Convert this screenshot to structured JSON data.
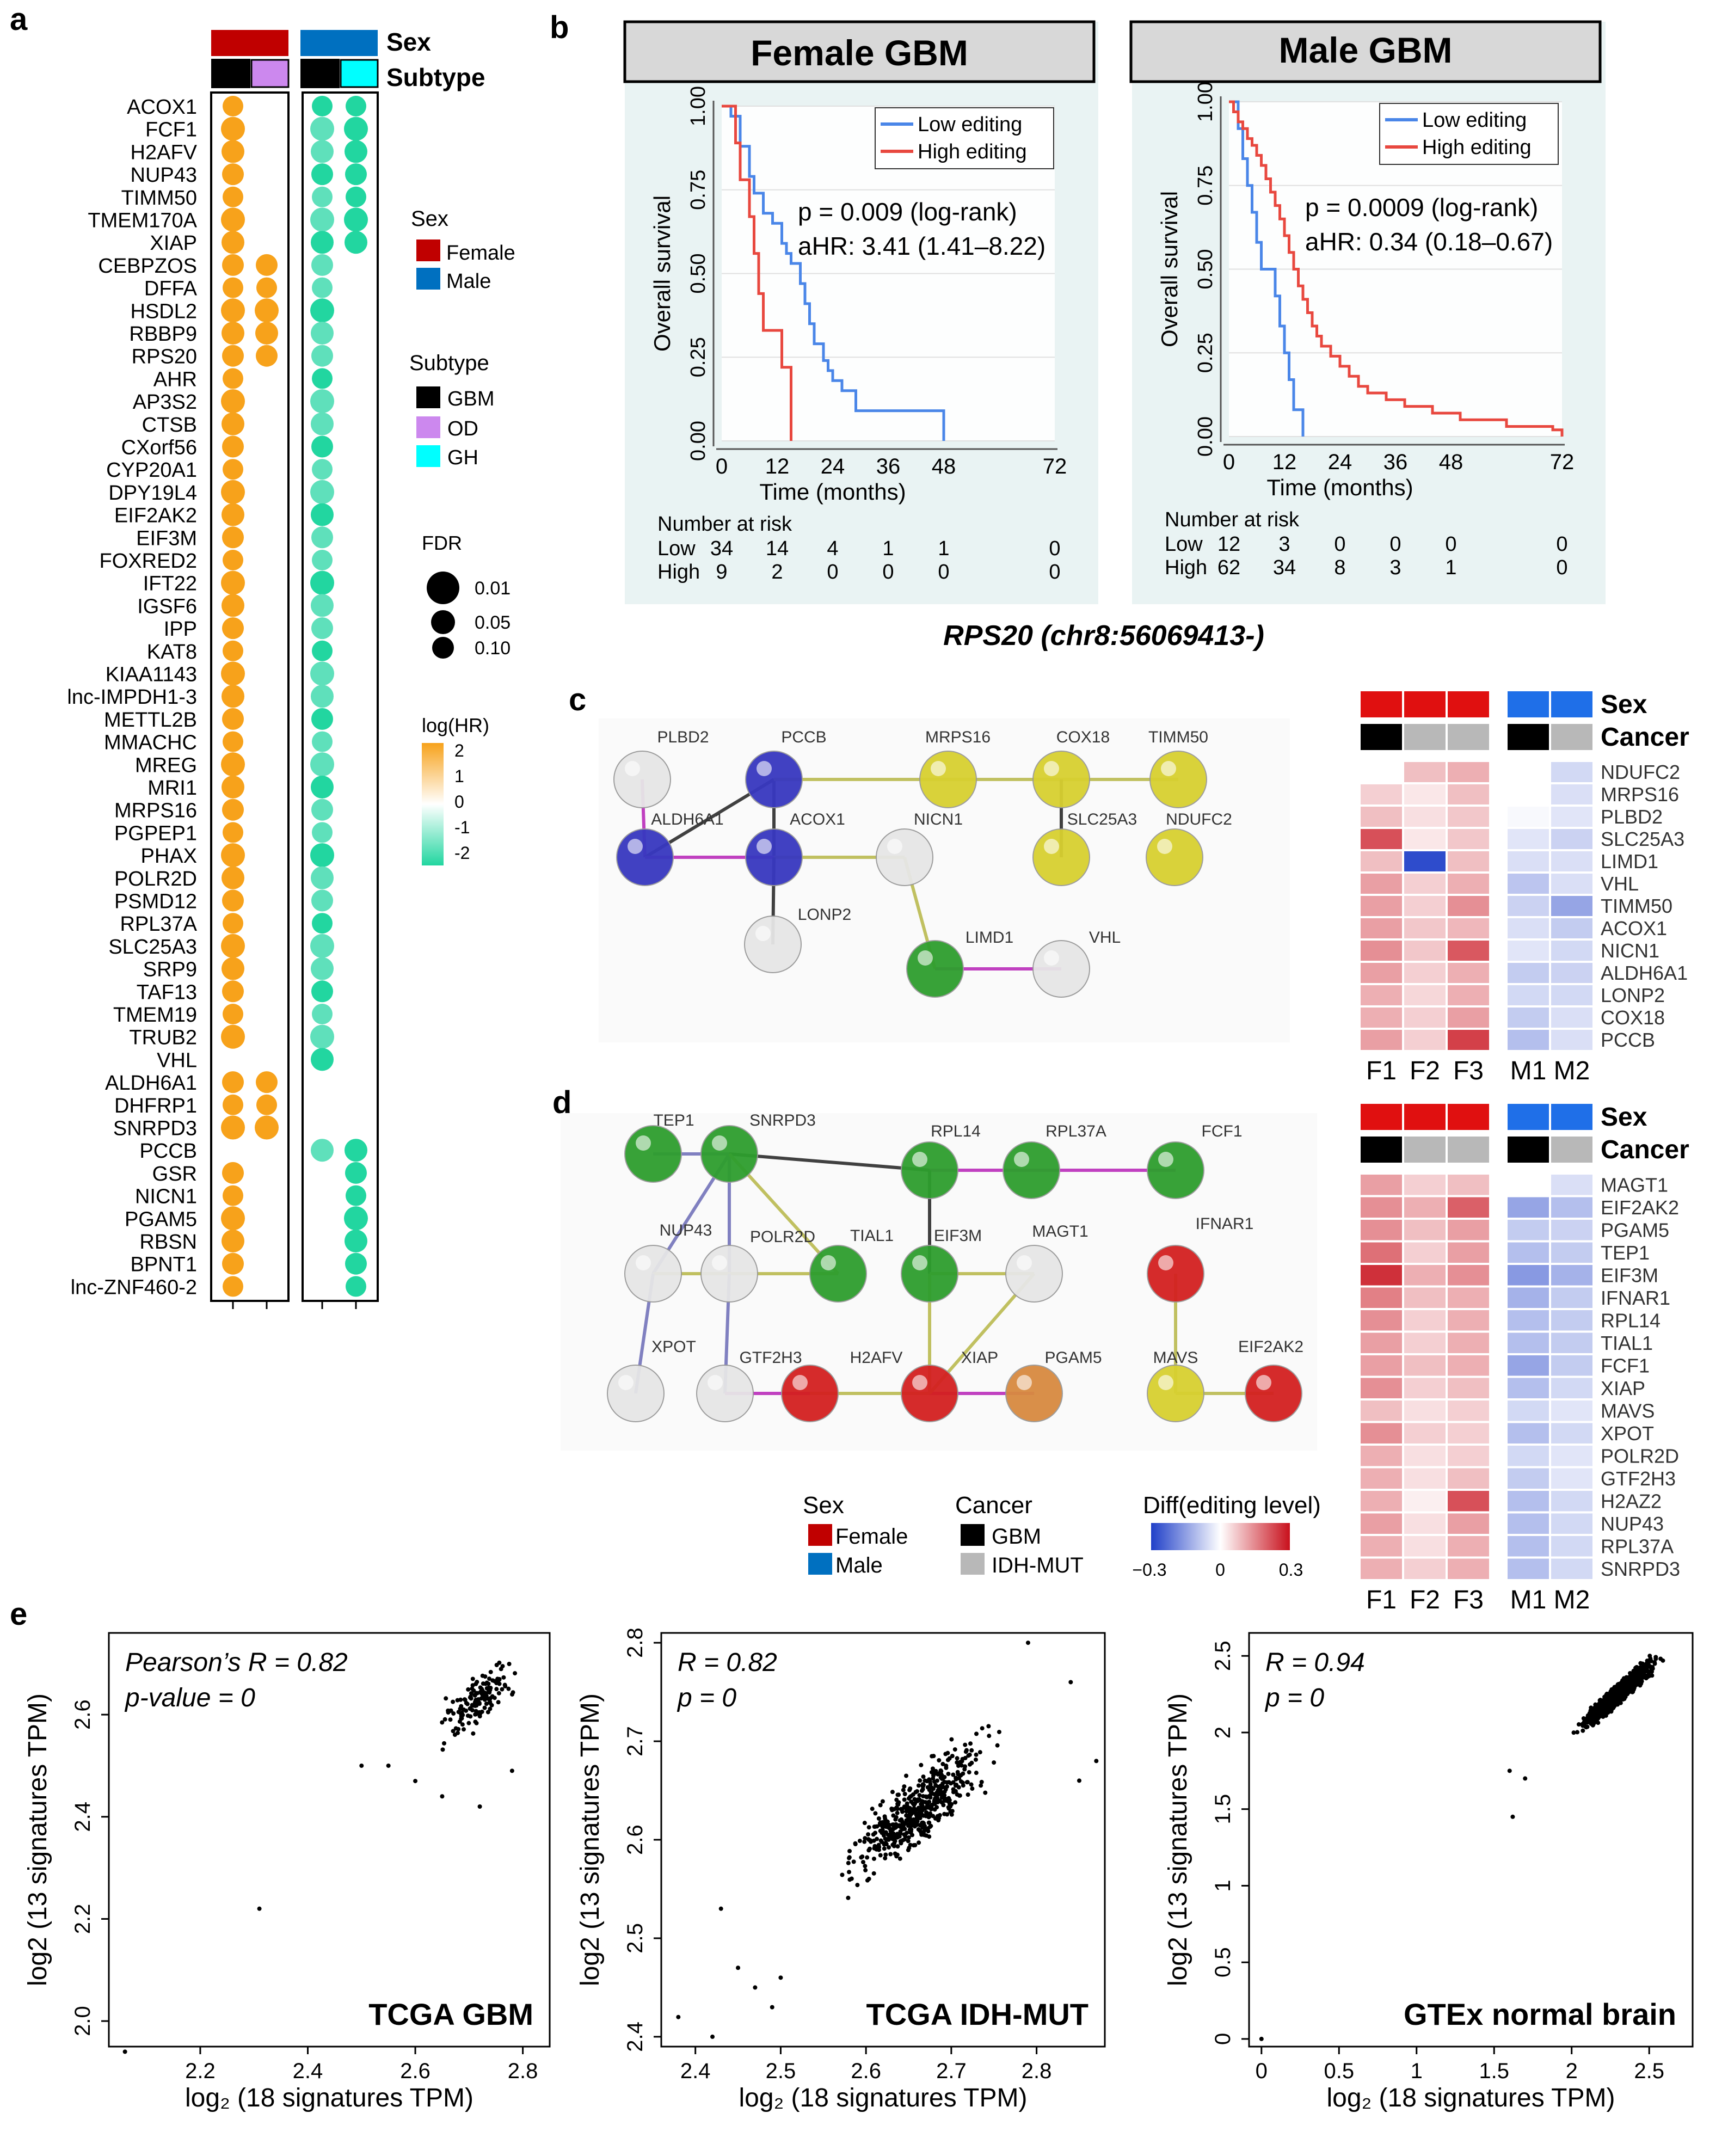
{
  "panel_labels": {
    "a": "a",
    "b": "b",
    "c": "c",
    "d": "d",
    "e": "e"
  },
  "panel_a": {
    "genes": [
      "ACOX1",
      "FCF1",
      "H2AFV",
      "NUP43",
      "TIMM50",
      "TMEM170A",
      "XIAP",
      "CEBPZOS",
      "DFFA",
      "HSDL2",
      "RBBP9",
      "RPS20",
      "AHR",
      "AP3S2",
      "CTSB",
      "CXorf56",
      "CYP20A1",
      "DPY19L4",
      "EIF2AK2",
      "EIF3M",
      "FOXRED2",
      "IFT22",
      "IGSF6",
      "IPP",
      "KAT8",
      "KIAA1143",
      "lnc-IMPDH1-3",
      "METTL2B",
      "MMACHC",
      "MREG",
      "MRI1",
      "MRPS16",
      "PGPEP1",
      "PHAX",
      "POLR2D",
      "PSMD12",
      "RPL37A",
      "SLC25A3",
      "SRP9",
      "TAF13",
      "TMEM19",
      "TRUB2",
      "VHL",
      "ALDH6A1",
      "DHFRP1",
      "SNRPD3",
      "PCCB",
      "GSR",
      "NICN1",
      "PGAM5",
      "RBSN",
      "BPNT1",
      "lnc-ZNF460-2"
    ],
    "female_gbm": [
      1,
      1,
      1,
      1,
      1,
      1,
      1,
      1,
      1,
      1,
      1,
      1,
      1,
      1,
      1,
      1,
      1,
      1,
      1,
      1,
      1,
      1,
      1,
      1,
      1,
      1,
      1,
      1,
      1,
      1,
      1,
      1,
      1,
      1,
      1,
      1,
      1,
      1,
      1,
      1,
      1,
      1,
      0,
      1,
      1,
      1,
      0,
      1,
      1,
      1,
      1,
      1,
      1
    ],
    "female_od": [
      0,
      0,
      0,
      0,
      0,
      0,
      0,
      1,
      1,
      1,
      1,
      1,
      0,
      0,
      0,
      0,
      0,
      0,
      0,
      0,
      0,
      0,
      0,
      0,
      0,
      0,
      0,
      0,
      0,
      0,
      0,
      0,
      0,
      0,
      0,
      0,
      0,
      0,
      0,
      0,
      0,
      0,
      0,
      1,
      1,
      1,
      0,
      0,
      0,
      0,
      0,
      0,
      0
    ],
    "male_gbm": [
      1,
      1,
      1,
      1,
      1,
      1,
      1,
      1,
      1,
      1,
      1,
      1,
      1,
      1,
      1,
      1,
      1,
      1,
      1,
      1,
      1,
      1,
      1,
      1,
      1,
      1,
      1,
      1,
      1,
      1,
      1,
      1,
      1,
      1,
      1,
      1,
      1,
      1,
      1,
      1,
      1,
      1,
      1,
      0,
      0,
      0,
      1,
      0,
      0,
      0,
      0,
      0,
      0
    ],
    "male_gh": [
      1,
      1,
      1,
      1,
      1,
      1,
      1,
      0,
      0,
      0,
      0,
      0,
      0,
      0,
      0,
      0,
      0,
      0,
      0,
      0,
      0,
      0,
      0,
      0,
      0,
      0,
      0,
      0,
      0,
      0,
      0,
      0,
      0,
      0,
      0,
      0,
      0,
      0,
      0,
      0,
      0,
      0,
      0,
      0,
      0,
      0,
      1,
      1,
      1,
      1,
      1,
      1,
      1
    ],
    "legend": {
      "sex_title": "Sex",
      "female": "Female",
      "male": "Male",
      "subtype_title": "Subtype",
      "gbm": "GBM",
      "od": "OD",
      "gh": "GH",
      "fdr_title": "FDR",
      "fdr_values": [
        "0.01",
        "0.05",
        "0.10"
      ],
      "hr_title": "log(HR)",
      "hr_ticks": [
        "2",
        "1",
        "0",
        "-1",
        "-2"
      ]
    },
    "header_sex": "Sex",
    "header_subtype": "Subtype"
  },
  "panel_b": {
    "plots": [
      {
        "title": "Female GBM",
        "p": "p = 0.009 (log-rank)",
        "ahr": "aHR: 3.41 (1.41–8.22)",
        "low_steps": [
          [
            0,
            1
          ],
          [
            2,
            0.97
          ],
          [
            4,
            0.88
          ],
          [
            6,
            0.79
          ],
          [
            7,
            0.74
          ],
          [
            9,
            0.68
          ],
          [
            11,
            0.65
          ],
          [
            13,
            0.59
          ],
          [
            14,
            0.56
          ],
          [
            15,
            0.53
          ],
          [
            17,
            0.47
          ],
          [
            18,
            0.41
          ],
          [
            19,
            0.35
          ],
          [
            20,
            0.29
          ],
          [
            22,
            0.24
          ],
          [
            23,
            0.21
          ],
          [
            24,
            0.18
          ],
          [
            26,
            0.15
          ],
          [
            29,
            0.09
          ],
          [
            48,
            0.09
          ],
          [
            48,
            0.0
          ]
        ],
        "high_steps": [
          [
            0,
            1
          ],
          [
            3,
            0.89
          ],
          [
            4,
            0.78
          ],
          [
            6,
            0.67
          ],
          [
            7,
            0.56
          ],
          [
            8,
            0.44
          ],
          [
            9,
            0.33
          ],
          [
            13,
            0.22
          ],
          [
            15,
            0.0
          ]
        ],
        "low_ticks": [
          "34",
          "14",
          "4",
          "1",
          "1",
          "0"
        ],
        "high_ticks": [
          "9",
          "2",
          "0",
          "0",
          "0",
          "0"
        ]
      },
      {
        "title": "Male GBM",
        "p": "p = 0.0009 (log-rank)",
        "ahr": "aHR: 0.34 (0.18–0.67)",
        "low_steps": [
          [
            0,
            1
          ],
          [
            2,
            0.92
          ],
          [
            3,
            0.83
          ],
          [
            4,
            0.75
          ],
          [
            5,
            0.67
          ],
          [
            6,
            0.58
          ],
          [
            7,
            0.5
          ],
          [
            10,
            0.42
          ],
          [
            11,
            0.33
          ],
          [
            12,
            0.25
          ],
          [
            13,
            0.17
          ],
          [
            14,
            0.08
          ],
          [
            16,
            0.0
          ]
        ],
        "high_steps": [
          [
            0,
            1
          ],
          [
            1,
            0.97
          ],
          [
            2,
            0.94
          ],
          [
            3,
            0.92
          ],
          [
            4,
            0.89
          ],
          [
            5,
            0.87
          ],
          [
            6,
            0.84
          ],
          [
            7,
            0.81
          ],
          [
            8,
            0.77
          ],
          [
            9,
            0.73
          ],
          [
            10,
            0.69
          ],
          [
            11,
            0.65
          ],
          [
            12,
            0.6
          ],
          [
            13,
            0.55
          ],
          [
            14,
            0.5
          ],
          [
            15,
            0.45
          ],
          [
            16,
            0.41
          ],
          [
            17,
            0.37
          ],
          [
            18,
            0.33
          ],
          [
            19,
            0.3
          ],
          [
            20,
            0.27
          ],
          [
            22,
            0.24
          ],
          [
            24,
            0.21
          ],
          [
            26,
            0.18
          ],
          [
            28,
            0.15
          ],
          [
            30,
            0.13
          ],
          [
            34,
            0.11
          ],
          [
            38,
            0.09
          ],
          [
            44,
            0.07
          ],
          [
            50,
            0.05
          ],
          [
            60,
            0.03
          ],
          [
            70,
            0.02
          ],
          [
            72,
            0.0
          ]
        ],
        "low_ticks": [
          "12",
          "3",
          "0",
          "0",
          "0",
          "0"
        ],
        "high_ticks": [
          "62",
          "34",
          "8",
          "3",
          "1",
          "0"
        ]
      }
    ],
    "legend_low": "Low editing",
    "legend_high": "High editing",
    "ylabel": "Overall survival",
    "xlabel": "Time (months)",
    "yticks": [
      "0.00",
      "0.25",
      "0.50",
      "0.75",
      "1.00"
    ],
    "xticks": [
      "0",
      "12",
      "24",
      "36",
      "48",
      "72"
    ],
    "risk_title": "Number at risk",
    "risk_low": "Low",
    "risk_high": "High",
    "caption": "RPS20 (chr8:56069413-)"
  },
  "panel_c": {
    "nodes": [
      "PLBD2",
      "PCCB",
      "MRPS16",
      "COX18",
      "TIMM50",
      "ALDH6A1",
      "ACOX1",
      "NICN1",
      "SLC25A3",
      "NDUFC2",
      "LONP2",
      "LIMD1",
      "VHL"
    ],
    "genes": [
      "NDUFC2",
      "MRPS16",
      "PLBD2",
      "SLC25A3",
      "LIMD1",
      "VHL",
      "TIMM50",
      "ACOX1",
      "NICN1",
      "ALDH6A1",
      "LONP2",
      "COX18",
      "PCCB"
    ],
    "values": [
      [
        null,
        0.08,
        0.1,
        null,
        -0.06
      ],
      [
        0.06,
        0.03,
        0.08,
        null,
        -0.05
      ],
      [
        0.08,
        0.04,
        0.07,
        -0.01,
        -0.04
      ],
      [
        0.22,
        0.03,
        0.07,
        -0.04,
        -0.07
      ],
      [
        0.08,
        -0.28,
        0.08,
        -0.05,
        -0.05
      ],
      [
        0.12,
        0.06,
        0.1,
        -0.09,
        -0.05
      ],
      [
        0.12,
        0.06,
        0.14,
        -0.07,
        -0.14
      ],
      [
        0.12,
        0.07,
        0.09,
        -0.05,
        -0.08
      ],
      [
        0.14,
        0.07,
        0.21,
        -0.04,
        -0.06
      ],
      [
        0.12,
        0.06,
        0.1,
        -0.08,
        -0.07
      ],
      [
        0.1,
        0.05,
        0.1,
        -0.06,
        -0.06
      ],
      [
        0.1,
        0.06,
        0.12,
        -0.08,
        -0.05
      ],
      [
        0.12,
        0.06,
        0.24,
        -0.1,
        -0.05
      ]
    ],
    "samples": [
      "F1",
      "F2",
      "F3",
      "M1",
      "M2"
    ],
    "sex_label": "Sex",
    "cancer_label": "Cancer"
  },
  "panel_d": {
    "nodes": [
      "TEP1",
      "SNRPD3",
      "RPL14",
      "RPL37A",
      "FCF1",
      "NUP43",
      "POLR2D",
      "TIAL1",
      "EIF3M",
      "MAGT1",
      "IFNAR1",
      "XPOT",
      "GTF2H3",
      "H2AFV",
      "XIAP",
      "PGAM5",
      "MAVS",
      "EIF2AK2"
    ],
    "genes": [
      "MAGT1",
      "EIF2AK2",
      "PGAM5",
      "TEP1",
      "EIF3M",
      "IFNAR1",
      "RPL14",
      "TIAL1",
      "FCF1",
      "XIAP",
      "MAVS",
      "XPOT",
      "POLR2D",
      "GTF2H3",
      "H2AZ2",
      "NUP43",
      "RPL37A",
      "SNRPD3"
    ],
    "values": [
      [
        0.12,
        0.06,
        0.08,
        null,
        -0.05
      ],
      [
        0.14,
        0.1,
        0.2,
        -0.14,
        -0.1
      ],
      [
        0.14,
        0.08,
        0.12,
        -0.08,
        -0.07
      ],
      [
        0.18,
        0.06,
        0.12,
        -0.1,
        -0.08
      ],
      [
        0.26,
        0.1,
        0.14,
        -0.16,
        -0.12
      ],
      [
        0.16,
        0.08,
        0.1,
        -0.12,
        -0.08
      ],
      [
        0.14,
        0.06,
        0.1,
        -0.1,
        -0.08
      ],
      [
        0.12,
        0.06,
        0.1,
        -0.1,
        -0.08
      ],
      [
        0.12,
        0.08,
        0.1,
        -0.14,
        -0.08
      ],
      [
        0.14,
        0.06,
        0.08,
        -0.1,
        -0.06
      ],
      [
        0.08,
        0.04,
        0.06,
        -0.06,
        -0.04
      ],
      [
        0.14,
        0.06,
        0.06,
        -0.1,
        -0.06
      ],
      [
        0.1,
        0.04,
        0.06,
        -0.06,
        -0.04
      ],
      [
        0.1,
        0.04,
        0.08,
        -0.08,
        -0.04
      ],
      [
        0.1,
        0.02,
        0.22,
        -0.1,
        -0.06
      ],
      [
        0.12,
        0.04,
        0.12,
        -0.1,
        -0.06
      ],
      [
        0.1,
        0.04,
        0.1,
        -0.1,
        -0.06
      ],
      [
        0.1,
        0.06,
        0.1,
        -0.1,
        -0.06
      ]
    ],
    "samples": [
      "F1",
      "F2",
      "F3",
      "M1",
      "M2"
    ],
    "sex_label": "Sex",
    "cancer_label": "Cancer",
    "legend": {
      "sex_title": "Sex",
      "female": "Female",
      "male": "Male",
      "cancer_title": "Cancer",
      "gbm": "GBM",
      "idh": "IDH-MUT",
      "diff_title": "Diff(editing level)",
      "ticks": [
        "−0.3",
        "0",
        "0.3"
      ]
    }
  },
  "chart_data": [
    {
      "type": "scatter",
      "title": "TCGA GBM",
      "stat1": "Pearson’s R = 0.82",
      "stat2": "p-value = 0",
      "xlabel": "log₂ (18 signatures TPM)",
      "ylabel": "log2 (13 signatures TPM)",
      "xlim": [
        2.03,
        2.85
      ],
      "ylim": [
        1.95,
        2.76
      ],
      "xticks": [
        "2.2",
        "2.4",
        "2.6",
        "2.8"
      ],
      "yticks": [
        "2.0",
        "2.2",
        "2.4",
        "2.6"
      ],
      "points": [
        [
          2.06,
          1.94
        ],
        [
          2.31,
          2.22
        ],
        [
          2.72,
          2.42
        ],
        [
          2.5,
          2.5
        ],
        [
          2.55,
          2.5
        ],
        [
          2.6,
          2.47
        ],
        [
          2.65,
          2.44
        ],
        [
          2.78,
          2.49
        ]
      ]
    },
    {
      "type": "scatter",
      "title": "TCGA IDH-MUT",
      "stat1": "R = 0.82",
      "stat2": "p = 0",
      "xlabel": "log₂ (18 signatures TPM)",
      "ylabel": "log2 (13 signatures TPM)",
      "xlim": [
        2.36,
        2.88
      ],
      "ylim": [
        2.39,
        2.81
      ],
      "xticks": [
        "2.4",
        "2.5",
        "2.6",
        "2.7",
        "2.8"
      ],
      "yticks": [
        "2.4",
        "2.5",
        "2.6",
        "2.7",
        "2.8"
      ],
      "points": [
        [
          2.38,
          2.42
        ],
        [
          2.42,
          2.4
        ],
        [
          2.45,
          2.47
        ],
        [
          2.47,
          2.45
        ],
        [
          2.49,
          2.43
        ],
        [
          2.5,
          2.46
        ],
        [
          2.43,
          2.53
        ],
        [
          2.84,
          2.76
        ],
        [
          2.87,
          2.68
        ],
        [
          2.85,
          2.66
        ],
        [
          2.79,
          2.8
        ]
      ]
    },
    {
      "type": "scatter",
      "title": "GTEx normal brain",
      "stat1": "R = 0.94",
      "stat2": "p = 0",
      "xlabel": "log₂ (18 signatures TPM)",
      "ylabel": "log2 (13 signatures TPM)",
      "xlim": [
        -0.08,
        2.78
      ],
      "ylim": [
        -0.05,
        2.65
      ],
      "xticks": [
        "0",
        "0.5",
        "1",
        "1.5",
        "2",
        "2.5"
      ],
      "yticks": [
        "0",
        "0.5",
        "1",
        "1.5",
        "2",
        "2.5"
      ],
      "points": [
        [
          0,
          0
        ],
        [
          1.62,
          1.45
        ],
        [
          1.6,
          1.75
        ],
        [
          1.7,
          1.7
        ]
      ]
    }
  ],
  "colors": {
    "female": "#c00000",
    "male": "#0070c0",
    "orange": "#f7a21b",
    "teal": "#22d6a0",
    "od": "#cc88ee",
    "gh": "#00ffff",
    "low": "#4a86e8",
    "high": "#e8483f",
    "gbm": "#000000",
    "idh": "#b8b8b8"
  }
}
